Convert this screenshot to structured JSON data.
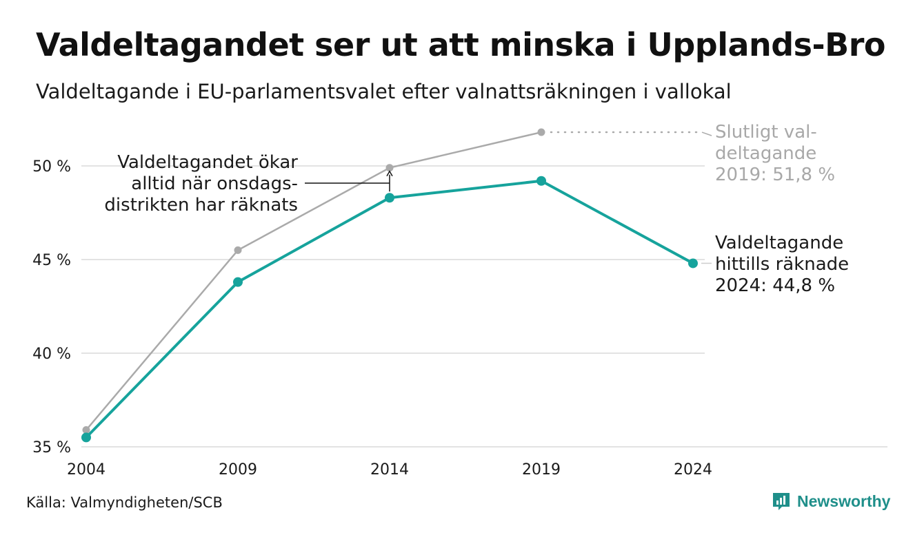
{
  "title": "Valdeltagandet ser ut att minska i Upplands-Bro",
  "subtitle": "Valdeltagande i EU-parlamentsvalet efter valnattsräkningen i vallokal",
  "source": "Källa: Valmyndigheten/SCB",
  "brand": "Newsworthy",
  "colors": {
    "counted": "#16a39c",
    "final": "#aaaaaa",
    "grid": "#e3e3e3",
    "brand": "#1f8f8a"
  },
  "chart_data": {
    "type": "line",
    "x": [
      2004,
      2009,
      2014,
      2019,
      2024
    ],
    "ylim": [
      35,
      52
    ],
    "y_ticks": [
      35,
      40,
      45,
      50
    ],
    "y_tick_labels": [
      "35 %",
      "40 %",
      "45 %",
      "50 %"
    ],
    "x_tick_labels": [
      "2004",
      "2009",
      "2014",
      "2019",
      "2024"
    ],
    "grid": true,
    "series": [
      {
        "key": "final",
        "values": [
          35.9,
          45.5,
          49.9,
          51.8,
          null
        ]
      },
      {
        "key": "counted",
        "values": [
          35.5,
          43.8,
          48.3,
          49.2,
          44.8
        ]
      }
    ],
    "annotations": {
      "final": [
        "Slutligt val-",
        "deltagande",
        "2019: 51,8 %"
      ],
      "counted": [
        "Valdeltagande",
        "hittills räknade",
        "2024: 44,8 %"
      ],
      "wednesday": [
        "Valdeltagandet ökar",
        "alltid när onsdags-",
        "distrikten har räknats"
      ]
    }
  }
}
